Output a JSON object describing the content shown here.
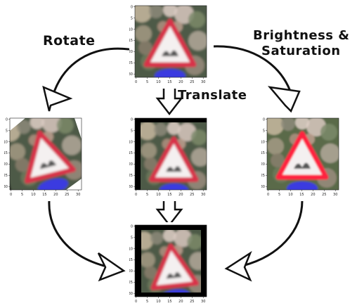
{
  "labels": {
    "rotate": "Rotate",
    "brightness_line1": "Brightness &",
    "brightness_line2": "Saturation",
    "translate": "Translate"
  },
  "axis_ticks": {
    "x": [
      "0",
      "5",
      "10",
      "15",
      "20",
      "25",
      "30"
    ],
    "y": [
      "0",
      "5",
      "10",
      "15",
      "20",
      "25",
      "30"
    ]
  },
  "colors": {
    "sign_red": "#d8324a",
    "sign_white": "#f4f0f0",
    "plate_blue": "#3a3ae0",
    "arrow": "#111111"
  },
  "icons": [
    "hollow-arrowhead",
    "hollow-down-arrow"
  ]
}
